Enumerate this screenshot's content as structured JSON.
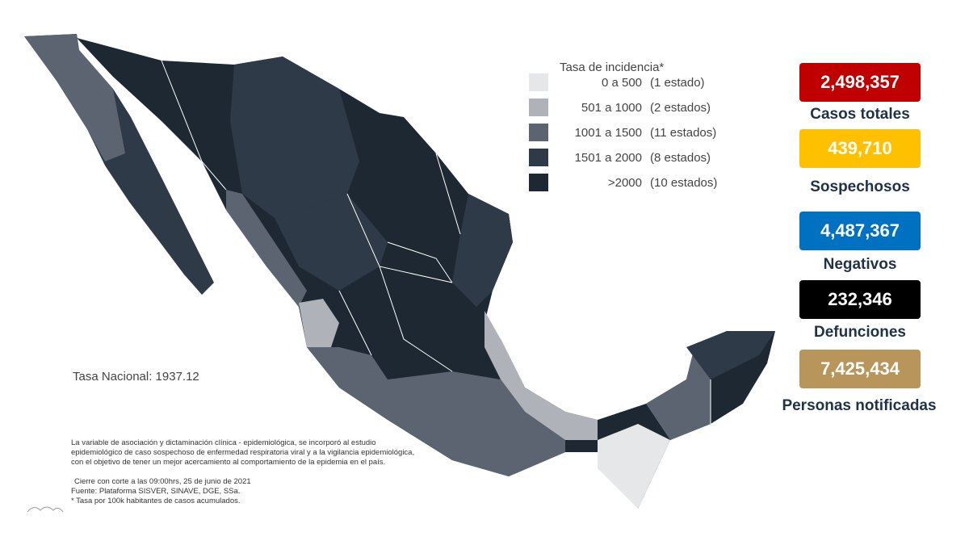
{
  "legend": {
    "title": "Tasa de incidencia*",
    "items": [
      {
        "range": "0 a 500",
        "count": "(1 estado)",
        "color": "#e6e7e9"
      },
      {
        "range": "501 a 1000",
        "count": "(2 estados)",
        "color": "#afb3b9"
      },
      {
        "range": "1001 a 1500",
        "count": "(11 estados)",
        "color": "#5b6470"
      },
      {
        "range": "1501 a 2000",
        "count": "(8 estados)",
        "color": "#2f3a48"
      },
      {
        "range": ">2000",
        "count": "(10 estados)",
        "color": "#1e2833"
      }
    ]
  },
  "national_rate": "Tasa Nacional: 1937.12",
  "stats": [
    {
      "value": "2,498,357",
      "label": "Casos totales",
      "color": "#c00000"
    },
    {
      "value": "439,710",
      "label": "Sospechosos",
      "color": "#ffc000"
    },
    {
      "value": "4,487,367",
      "label": "Negativos",
      "color": "#0070c0"
    },
    {
      "value": "232,346",
      "label": "Defunciones",
      "color": "#000000"
    },
    {
      "value": "7,425,434",
      "label": "Personas notificadas",
      "color": "#b8955a"
    }
  ],
  "notes": {
    "association": [
      "La variable de asociación y dictaminación clínica - epidemiológica, se incorporó al estudio",
      "epidemiológico de caso sospechoso de enfermedad respiratoria viral y a la vigilancia epidemiológica,",
      "con el objetivo de tener un mejor acercamiento al comportamiento de la epidemia en el país."
    ],
    "cutoff": "Cierre con corte a las 09:00hrs, 25 de junio de 2021",
    "source": "Fuente: Plataforma SISVER, SINAVE, DGE, SSa.",
    "rate": "* Tasa por 100k habitantes de casos acumulados."
  }
}
